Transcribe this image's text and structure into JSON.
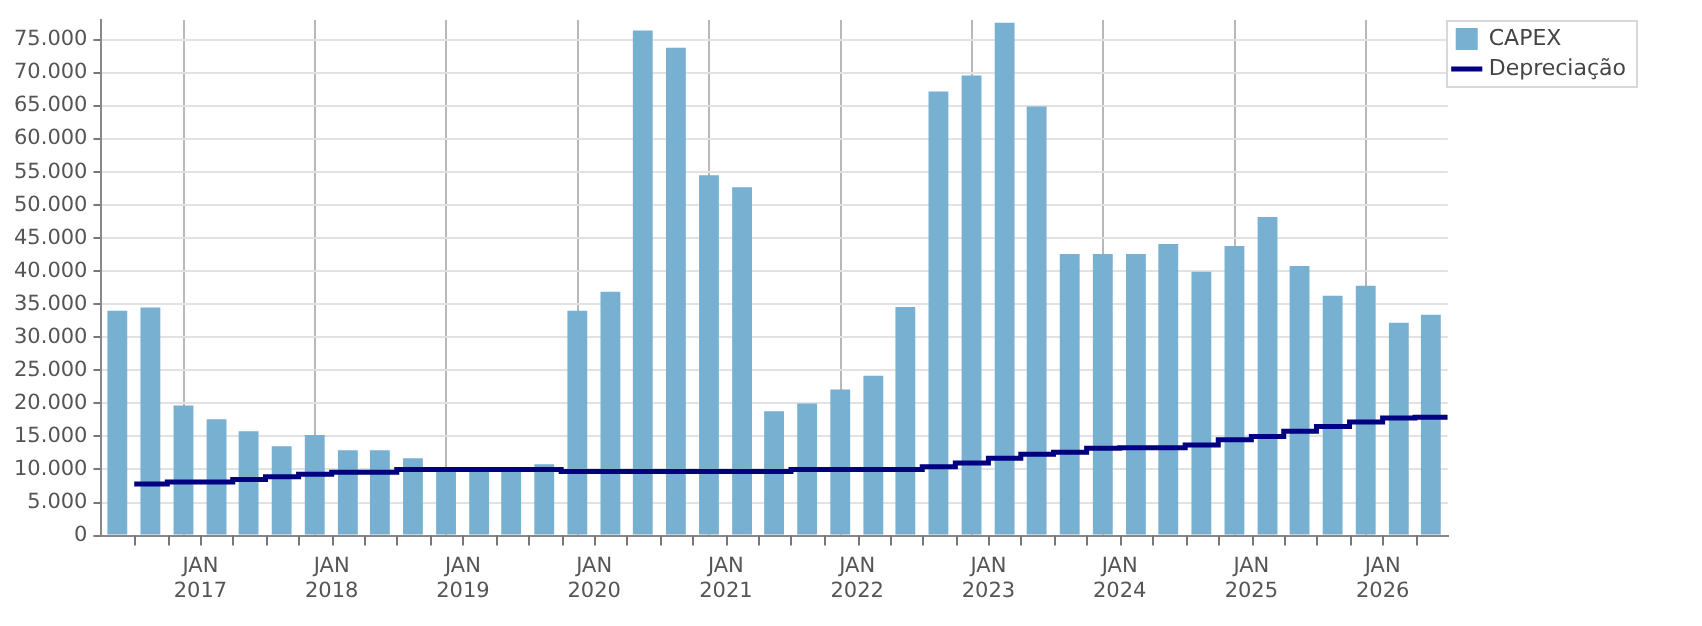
{
  "chart_data": {
    "type": "bar",
    "x": [
      "2016-05-15",
      "2016-08-15",
      "2016-11-15",
      "2017-02-15",
      "2017-05-15",
      "2017-08-15",
      "2017-11-15",
      "2018-02-15",
      "2018-05-15",
      "2018-08-15",
      "2018-11-15",
      "2019-02-15",
      "2019-05-15",
      "2019-08-15",
      "2019-11-15",
      "2020-02-15",
      "2020-05-15",
      "2020-08-15",
      "2020-11-15",
      "2021-02-15",
      "2021-05-15",
      "2021-08-15",
      "2021-11-15",
      "2022-02-15",
      "2022-05-15",
      "2022-08-15",
      "2022-11-15",
      "2023-02-15",
      "2023-05-15",
      "2023-08-15",
      "2023-11-15",
      "2024-02-15",
      "2024-05-15",
      "2024-08-15",
      "2024-11-15",
      "2025-02-15",
      "2025-05-15",
      "2025-08-15",
      "2025-11-15",
      "2026-02-15",
      "2026-05-15"
    ],
    "series": [
      {
        "name": "CAPEX",
        "color": "#78b0d2",
        "values": [
          34000,
          34500,
          19700,
          17600,
          15800,
          13500,
          15200,
          12900,
          12900,
          11700,
          10000,
          10000,
          10000,
          10800,
          34000,
          36900,
          76400,
          73800,
          54500,
          52700,
          18800,
          20000,
          22100,
          24200,
          34600,
          67200,
          69600,
          77600,
          64900,
          42600,
          42600,
          42600,
          44100,
          39900,
          43800,
          48200,
          40800,
          36300,
          37800,
          32200,
          33400
        ]
      },
      {
        "name": "Depreciação",
        "type": "step",
        "color": "#000080",
        "x": [
          "2016-07-01",
          "2016-10-01",
          "2017-01-01",
          "2017-04-01",
          "2017-07-01",
          "2017-10-01",
          "2018-01-01",
          "2018-04-01",
          "2018-07-01",
          "2018-10-01",
          "2019-01-01",
          "2019-04-01",
          "2019-07-01",
          "2019-10-01",
          "2020-01-01",
          "2020-04-01",
          "2020-07-01",
          "2020-10-01",
          "2021-01-01",
          "2021-04-01",
          "2021-07-01",
          "2021-10-01",
          "2022-01-01",
          "2022-04-01",
          "2022-07-01",
          "2022-10-01",
          "2023-01-01",
          "2023-04-01",
          "2023-07-01",
          "2023-10-01",
          "2024-01-01",
          "2024-04-01",
          "2024-07-01",
          "2024-10-01",
          "2025-01-01",
          "2025-04-01",
          "2025-07-01",
          "2025-10-01",
          "2026-01-01",
          "2026-04-01",
          "2026-07-01"
        ],
        "values": [
          7800,
          7800,
          8100,
          8100,
          8500,
          8900,
          9300,
          9600,
          9600,
          10000,
          10000,
          10000,
          10000,
          10000,
          9700,
          9700,
          9700,
          9700,
          9700,
          9700,
          9700,
          10000,
          10000,
          10000,
          10000,
          10400,
          11000,
          11700,
          12300,
          12600,
          13200,
          13300,
          13300,
          13700,
          14500,
          15000,
          15800,
          16500,
          17200,
          17800,
          17900
        ]
      }
    ],
    "xlim": [
      "2016-04-01",
      "2026-07-01"
    ],
    "xticks": [
      {
        "value": "2016-07-01",
        "label": null
      },
      {
        "value": "2016-10-01",
        "label": null
      },
      {
        "value": "2017-01-01",
        "label": "JAN\n2017"
      },
      {
        "value": "2017-04-01",
        "label": null
      },
      {
        "value": "2017-07-01",
        "label": null
      },
      {
        "value": "2017-10-01",
        "label": null
      },
      {
        "value": "2018-01-01",
        "label": "JAN\n2018"
      },
      {
        "value": "2018-04-01",
        "label": null
      },
      {
        "value": "2018-07-01",
        "label": null
      },
      {
        "value": "2018-10-01",
        "label": null
      },
      {
        "value": "2019-01-01",
        "label": "JAN\n2019"
      },
      {
        "value": "2019-04-01",
        "label": null
      },
      {
        "value": "2019-07-01",
        "label": null
      },
      {
        "value": "2019-10-01",
        "label": null
      },
      {
        "value": "2020-01-01",
        "label": "JAN\n2020"
      },
      {
        "value": "2020-04-01",
        "label": null
      },
      {
        "value": "2020-07-01",
        "label": null
      },
      {
        "value": "2020-10-01",
        "label": null
      },
      {
        "value": "2021-01-01",
        "label": "JAN\n2021"
      },
      {
        "value": "2021-04-01",
        "label": null
      },
      {
        "value": "2021-07-01",
        "label": null
      },
      {
        "value": "2021-10-01",
        "label": null
      },
      {
        "value": "2022-01-01",
        "label": "JAN\n2022"
      },
      {
        "value": "2022-04-01",
        "label": null
      },
      {
        "value": "2022-07-01",
        "label": null
      },
      {
        "value": "2022-10-01",
        "label": null
      },
      {
        "value": "2023-01-01",
        "label": "JAN\n2023"
      },
      {
        "value": "2023-04-01",
        "label": null
      },
      {
        "value": "2023-07-01",
        "label": null
      },
      {
        "value": "2023-10-01",
        "label": null
      },
      {
        "value": "2024-01-01",
        "label": "JAN\n2024"
      },
      {
        "value": "2024-04-01",
        "label": null
      },
      {
        "value": "2024-07-01",
        "label": null
      },
      {
        "value": "2024-10-01",
        "label": null
      },
      {
        "value": "2025-01-01",
        "label": "JAN\n2025"
      },
      {
        "value": "2025-04-01",
        "label": null
      },
      {
        "value": "2025-07-01",
        "label": null
      },
      {
        "value": "2025-10-01",
        "label": null
      },
      {
        "value": "2026-01-01",
        "label": "JAN\n2026"
      },
      {
        "value": "2026-04-01",
        "label": null
      }
    ],
    "ylim": [
      0,
      78000
    ],
    "yticks": [
      {
        "value": 0,
        "label": "0"
      },
      {
        "value": 5000,
        "label": "5.000"
      },
      {
        "value": 10000,
        "label": "10.000"
      },
      {
        "value": 15000,
        "label": "15.000"
      },
      {
        "value": 20000,
        "label": "20.000"
      },
      {
        "value": 25000,
        "label": "25.000"
      },
      {
        "value": 30000,
        "label": "30.000"
      },
      {
        "value": 35000,
        "label": "35.000"
      },
      {
        "value": 40000,
        "label": "40.000"
      },
      {
        "value": 45000,
        "label": "45.000"
      },
      {
        "value": 50000,
        "label": "50.000"
      },
      {
        "value": 55000,
        "label": "55.000"
      },
      {
        "value": 60000,
        "label": "60.000"
      },
      {
        "value": 65000,
        "label": "65.000"
      },
      {
        "value": 70000,
        "label": "70.000"
      },
      {
        "value": 75000,
        "label": "75.000"
      }
    ],
    "grid": true,
    "legend": "top right"
  }
}
